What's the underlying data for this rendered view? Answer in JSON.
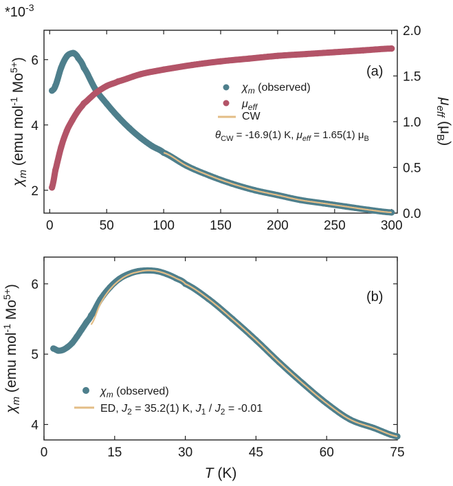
{
  "chart_data": [
    {
      "panel": "(a)",
      "type": "scatter",
      "multiplier": "*10",
      "multiplier_exp": "-3",
      "xlim": [
        -5,
        305
      ],
      "xticks": [
        "0",
        "50",
        "100",
        "150",
        "200",
        "250",
        "300"
      ],
      "xtick_values": [
        0,
        50,
        100,
        150,
        200,
        250,
        300
      ],
      "ylim": [
        1.3,
        6.9
      ],
      "yticks": [
        "2",
        "4",
        "6"
      ],
      "ytick_values": [
        2,
        4,
        6
      ],
      "ylabel": {
        "chi": "χ",
        "m": "m",
        "rest": " (emu mol",
        "sup1": "-1",
        "mo": " Mo",
        "sup2": "5+",
        "close": ")"
      },
      "y2lim": [
        0,
        2.0
      ],
      "y2ticks": [
        "0.0",
        "0.5",
        "1.0",
        "1.5",
        "2.0"
      ],
      "y2tick_values": [
        0,
        0.5,
        1.0,
        1.5,
        2.0
      ],
      "y2label": {
        "mu": "μ",
        "eff": "eff",
        "rest": " (μ",
        "b": "B",
        "close": ")"
      },
      "series": [
        {
          "name": "χm (observed)",
          "color": "#4e7f8c",
          "axis": "left",
          "x": [
            2,
            5,
            10,
            15,
            20,
            22,
            25,
            30,
            40,
            50,
            60,
            70,
            80,
            90,
            100,
            120,
            140,
            160,
            180,
            200,
            220,
            240,
            260,
            280,
            300
          ],
          "y": [
            5.05,
            5.2,
            5.75,
            6.1,
            6.2,
            6.18,
            6.05,
            5.75,
            5.1,
            4.65,
            4.25,
            3.9,
            3.6,
            3.35,
            3.15,
            2.75,
            2.45,
            2.2,
            2.0,
            1.85,
            1.7,
            1.6,
            1.5,
            1.4,
            1.32
          ]
        },
        {
          "name": "μeff",
          "color": "#b35468",
          "axis": "right",
          "x": [
            2,
            5,
            10,
            15,
            20,
            25,
            30,
            40,
            50,
            60,
            80,
            100,
            125,
            150,
            175,
            200,
            225,
            250,
            275,
            300
          ],
          "y": [
            0.28,
            0.47,
            0.72,
            0.9,
            1.02,
            1.12,
            1.2,
            1.31,
            1.39,
            1.44,
            1.52,
            1.57,
            1.62,
            1.66,
            1.69,
            1.72,
            1.74,
            1.76,
            1.78,
            1.8
          ]
        },
        {
          "name": "CW",
          "color": "#e3bd86",
          "axis": "left",
          "style": "line",
          "x": [
            100,
            120,
            140,
            160,
            180,
            200,
            220,
            240,
            260,
            280,
            300
          ],
          "y": [
            3.15,
            2.75,
            2.45,
            2.2,
            2.0,
            1.85,
            1.7,
            1.6,
            1.5,
            1.4,
            1.32
          ]
        }
      ],
      "legend": {
        "items": [
          {
            "label_main": "χ",
            "label_sub": "m",
            "label_rest": " (observed)"
          },
          {
            "label_main": "μ",
            "label_sub": "eff",
            "label_rest": ""
          },
          {
            "label_main": "CW",
            "label_sub": "",
            "label_rest": ""
          }
        ]
      },
      "annotation": {
        "theta": "θ",
        "theta_sub": "CW",
        "part1": " = -16.9(1) K, ",
        "mu": "μ",
        "mu_sub": "eff",
        "part2": " = 1.65(1) μ",
        "b_sub": "B"
      }
    },
    {
      "panel": "(b)",
      "type": "scatter",
      "xlim": [
        0,
        75
      ],
      "xticks": [
        "0",
        "15",
        "30",
        "45",
        "60",
        "75"
      ],
      "xtick_values": [
        0,
        15,
        30,
        45,
        60,
        75
      ],
      "ylim": [
        3.78,
        6.38
      ],
      "yticks": [
        "4",
        "5",
        "6"
      ],
      "ytick_values": [
        4,
        5,
        6
      ],
      "xlabel": {
        "t": "T",
        "rest": " (K)"
      },
      "ylabel": {
        "chi": "χ",
        "m": "m",
        "rest": " (emu mol",
        "sup1": "-1",
        "mo": " Mo",
        "sup2": "5+",
        "close": ")"
      },
      "series": [
        {
          "name": "χm (observed)",
          "color": "#4e7f8c",
          "x": [
            2,
            3,
            4,
            5,
            6,
            7,
            8,
            9,
            10,
            12,
            14,
            16,
            18,
            20,
            22,
            24,
            26,
            28,
            30,
            35,
            40,
            45,
            50,
            55,
            60,
            65,
            70,
            75
          ],
          "y": [
            5.08,
            5.05,
            5.06,
            5.1,
            5.16,
            5.25,
            5.35,
            5.45,
            5.55,
            5.78,
            5.95,
            6.07,
            6.14,
            6.18,
            6.19,
            6.18,
            6.14,
            6.08,
            6.0,
            5.78,
            5.5,
            5.2,
            4.88,
            4.58,
            4.3,
            4.07,
            3.95,
            3.83
          ]
        },
        {
          "name": "ED",
          "color": "#e3bd86",
          "style": "line",
          "x": [
            10,
            12,
            14,
            16,
            18,
            20,
            22,
            24,
            26,
            28,
            30,
            35,
            40,
            45,
            50,
            55,
            60,
            65,
            70,
            75
          ],
          "y": [
            5.42,
            5.72,
            5.92,
            6.05,
            6.13,
            6.17,
            6.19,
            6.18,
            6.14,
            6.08,
            6.0,
            5.78,
            5.5,
            5.2,
            4.88,
            4.58,
            4.3,
            4.07,
            3.95,
            3.83
          ]
        }
      ],
      "legend": {
        "items": [
          {
            "label_main": "χ",
            "label_sub": "m",
            "label_rest": " (observed)"
          },
          {
            "label_main": "ED, ",
            "j2": "J",
            "j2_sub": "2",
            "part1": " = 35.2(1) K, ",
            "j1": "J",
            "j1_sub": "1",
            "slash": " / ",
            "j2b": "J",
            "j2b_sub": "2",
            "part2": " = -0.01"
          }
        ]
      }
    }
  ]
}
